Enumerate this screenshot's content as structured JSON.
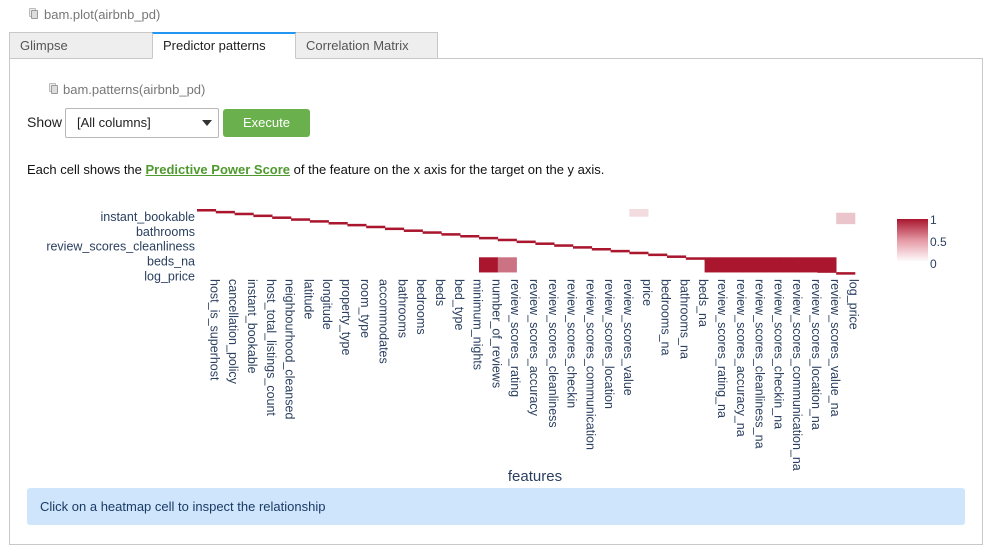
{
  "code_call_top": "bam.plot(airbnb_pd)",
  "tabs": [
    {
      "label": "Glimpse",
      "active": false
    },
    {
      "label": "Predictor patterns",
      "active": true
    },
    {
      "label": "Correlation Matrix",
      "active": false
    }
  ],
  "panel": {
    "code_call": "bam.patterns(airbnb_pd)",
    "show_label": "Show",
    "select_value": "[All columns]",
    "execute_label": "Execute",
    "desc_prefix": "Each cell shows the ",
    "desc_link": "Predictive Power Score",
    "desc_suffix": " of the feature on the x axis for the target on the y axis.",
    "info_text": "Click on a heatmap cell to inspect the relationship"
  },
  "colors": {
    "accent_tab": "#2196f3",
    "execute_button": "#6ab04c",
    "link": "#4e9a2e",
    "info_bg": "#cfe5fb",
    "heat_high": "#a9162e",
    "heat_low": "#ffffff",
    "axis_text": "#2a3f5f"
  },
  "chart_data": {
    "type": "heatmap",
    "xlabel": "features",
    "ylabel": "",
    "x": [
      "host_is_superhost",
      "cancellation_policy",
      "instant_bookable",
      "host_total_listings_count",
      "neighbourhood_cleansed",
      "latitude",
      "longitude",
      "property_type",
      "room_type",
      "accommodates",
      "bathrooms",
      "bedrooms",
      "beds",
      "bed_type",
      "minimum_nights",
      "number_of_reviews",
      "review_scores_rating",
      "review_scores_accuracy",
      "review_scores_cleanliness",
      "review_scores_checkin",
      "review_scores_communication",
      "review_scores_location",
      "review_scores_value",
      "price",
      "bedrooms_na",
      "bathrooms_na",
      "beds_na",
      "review_scores_rating_na",
      "review_scores_accuracy_na",
      "review_scores_cleanliness_na",
      "review_scores_checkin_na",
      "review_scores_communication_na",
      "review_scores_location_na",
      "review_scores_value_na",
      "log_price"
    ],
    "y_tick_labels": [
      "instant_bookable",
      "bathrooms",
      "review_scores_cleanliness",
      "beds_na",
      "log_price"
    ],
    "y_count": 35,
    "diagonal_value": 1,
    "notable_values": [
      {
        "x": "number_of_reviews",
        "y_range": [
          "beds_na",
          "beds_na+3"
        ],
        "value": 1
      },
      {
        "x": "review_scores_rating",
        "y_range": [
          "beds_na",
          "beds_na+3"
        ],
        "value": 0.6
      },
      {
        "x": "review_scores_rating_na",
        "y_range": [
          "beds_na",
          "beds_na+3"
        ],
        "value": 1
      },
      {
        "x": "review_scores_accuracy_na",
        "y_range": [
          "beds_na",
          "beds_na+3"
        ],
        "value": 1
      },
      {
        "x": "review_scores_cleanliness_na",
        "y_range": [
          "beds_na",
          "beds_na+3"
        ],
        "value": 1
      },
      {
        "x": "review_scores_checkin_na",
        "y_range": [
          "beds_na",
          "beds_na+3"
        ],
        "value": 1
      },
      {
        "x": "review_scores_communication_na",
        "y_range": [
          "beds_na",
          "beds_na+3"
        ],
        "value": 1
      },
      {
        "x": "review_scores_location_na",
        "y_range": [
          "beds_na",
          "beds_na+3"
        ],
        "value": 1
      },
      {
        "x": "review_scores_value_na",
        "y_range": [
          "beds_na",
          "beds_na+3"
        ],
        "value": 1
      }
    ],
    "colorscale_range": [
      0,
      1
    ],
    "colorbar_ticks": [
      "1",
      "0.5",
      "0"
    ],
    "x_truncated_labels": {
      "review_scores_communication_na": "review_scores_communication_na"
    }
  }
}
